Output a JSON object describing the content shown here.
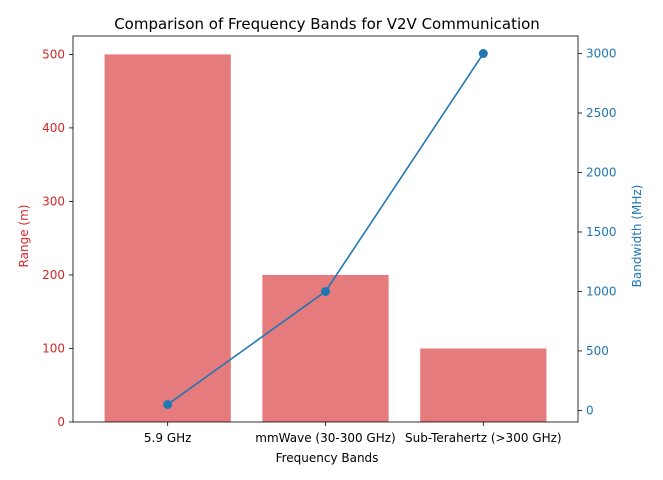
{
  "chart_data": {
    "type": "bar",
    "title": "Comparison of Frequency Bands for V2V Communication",
    "xlabel": "Frequency Bands",
    "categories": [
      "5.9 GHz",
      "mmWave (30-300 GHz)",
      "Sub-Terahertz (>300 GHz)"
    ],
    "series": [
      {
        "name": "Range (m)",
        "kind": "bar",
        "axis": "left",
        "values": [
          500,
          200,
          100
        ]
      },
      {
        "name": "Bandwidth (MHz)",
        "kind": "line",
        "axis": "right",
        "values": [
          50,
          1000,
          3000
        ]
      }
    ],
    "y_left": {
      "label": "Range (m)",
      "ylim": [
        0,
        525
      ],
      "ticks": [
        0,
        100,
        200,
        300,
        400,
        500
      ]
    },
    "y_right": {
      "label": "Bandwidth (MHz)",
      "ylim": [
        -97.5,
        3147.5
      ],
      "ticks": [
        0,
        500,
        1000,
        1500,
        2000,
        2500,
        3000
      ]
    },
    "grid": false,
    "legend": "none",
    "colors": {
      "bar": "#e57b7c",
      "left_axis": "#d62728",
      "line": "#1f77b4",
      "right_axis": "#1f77b4"
    }
  }
}
